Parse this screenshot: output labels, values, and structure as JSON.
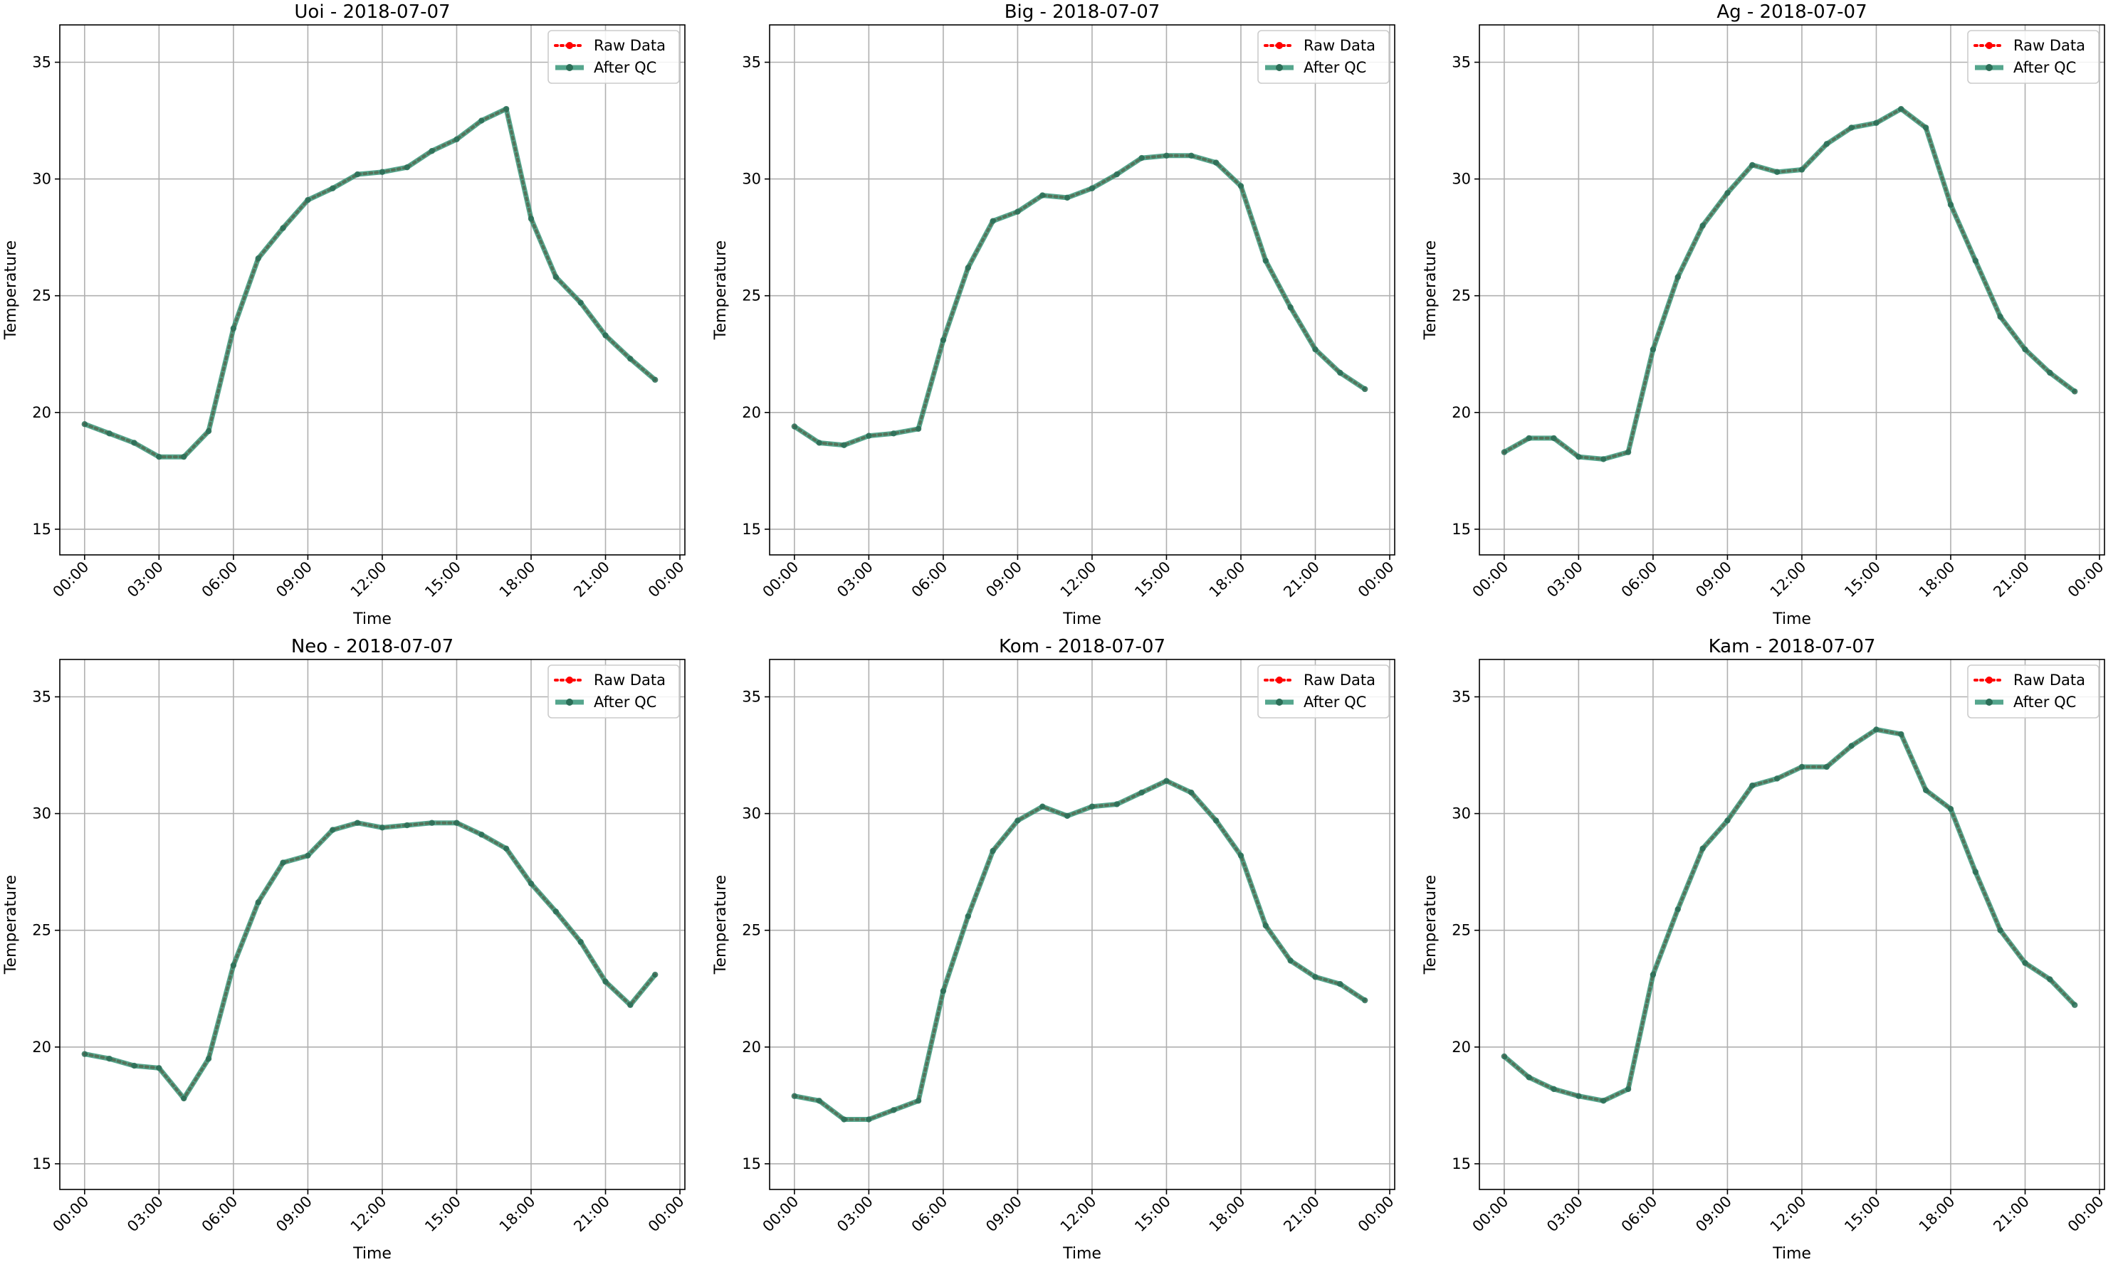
{
  "chart_data": [
    {
      "type": "line",
      "title": "Uoi - 2018-07-07",
      "xlabel": "Time",
      "ylabel": "Temperature",
      "ylim": [
        13.9,
        36.6
      ],
      "yticks": [
        15,
        20,
        25,
        30,
        35
      ],
      "xlim": [
        -1,
        24.2
      ],
      "xticks": [
        0,
        3,
        6,
        9,
        12,
        15,
        18,
        21,
        24
      ],
      "xticklabels": [
        "00:00",
        "03:00",
        "06:00",
        "09:00",
        "12:00",
        "15:00",
        "18:00",
        "21:00",
        "00:00"
      ],
      "grid": true,
      "legend": "top-right",
      "x": [
        0,
        1,
        2,
        3,
        4,
        5,
        6,
        7,
        8,
        9,
        10,
        11,
        12,
        13,
        14,
        15,
        16,
        17,
        18,
        19,
        20,
        21,
        22,
        23
      ],
      "series": [
        {
          "name": "Raw Data",
          "style": "dotted",
          "color": "#ff0000",
          "values": [
            19.5,
            19.1,
            18.7,
            18.1,
            18.1,
            19.2,
            23.6,
            26.6,
            27.9,
            29.1,
            29.6,
            30.2,
            30.3,
            30.5,
            31.2,
            31.7,
            32.5,
            33.0,
            28.3,
            25.8,
            24.7,
            23.3,
            22.3,
            21.4
          ]
        },
        {
          "name": "After QC",
          "style": "solid",
          "color": "#2a9070",
          "values": [
            19.5,
            19.1,
            18.7,
            18.1,
            18.1,
            19.2,
            23.6,
            26.6,
            27.9,
            29.1,
            29.6,
            30.2,
            30.3,
            30.5,
            31.2,
            31.7,
            32.5,
            33.0,
            28.3,
            25.8,
            24.7,
            23.3,
            22.3,
            21.4
          ]
        }
      ]
    },
    {
      "type": "line",
      "title": "Big - 2018-07-07",
      "xlabel": "Time",
      "ylabel": "Temperature",
      "ylim": [
        13.9,
        36.6
      ],
      "yticks": [
        15,
        20,
        25,
        30,
        35
      ],
      "xlim": [
        -1,
        24.2
      ],
      "xticks": [
        0,
        3,
        6,
        9,
        12,
        15,
        18,
        21,
        24
      ],
      "xticklabels": [
        "00:00",
        "03:00",
        "06:00",
        "09:00",
        "12:00",
        "15:00",
        "18:00",
        "21:00",
        "00:00"
      ],
      "grid": true,
      "legend": "top-right",
      "x": [
        0,
        1,
        2,
        3,
        4,
        5,
        6,
        7,
        8,
        9,
        10,
        11,
        12,
        13,
        14,
        15,
        16,
        17,
        18,
        19,
        20,
        21,
        22,
        23
      ],
      "series": [
        {
          "name": "Raw Data",
          "style": "dotted",
          "color": "#ff0000",
          "values": [
            19.4,
            18.7,
            18.6,
            19.0,
            19.1,
            19.3,
            23.1,
            26.2,
            28.2,
            28.6,
            29.3,
            29.2,
            29.6,
            30.2,
            30.9,
            31.0,
            31.0,
            30.7,
            29.7,
            26.5,
            24.5,
            22.7,
            21.7,
            21.0
          ]
        },
        {
          "name": "After QC",
          "style": "solid",
          "color": "#2a9070",
          "values": [
            19.4,
            18.7,
            18.6,
            19.0,
            19.1,
            19.3,
            23.1,
            26.2,
            28.2,
            28.6,
            29.3,
            29.2,
            29.6,
            30.2,
            30.9,
            31.0,
            31.0,
            30.7,
            29.7,
            26.5,
            24.5,
            22.7,
            21.7,
            21.0
          ]
        }
      ]
    },
    {
      "type": "line",
      "title": "Ag - 2018-07-07",
      "xlabel": "Time",
      "ylabel": "Temperature",
      "ylim": [
        13.9,
        36.6
      ],
      "yticks": [
        15,
        20,
        25,
        30,
        35
      ],
      "xlim": [
        -1,
        24.2
      ],
      "xticks": [
        0,
        3,
        6,
        9,
        12,
        15,
        18,
        21,
        24
      ],
      "xticklabels": [
        "00:00",
        "03:00",
        "06:00",
        "09:00",
        "12:00",
        "15:00",
        "18:00",
        "21:00",
        "00:00"
      ],
      "grid": true,
      "legend": "top-right",
      "x": [
        0,
        1,
        2,
        3,
        4,
        5,
        6,
        7,
        8,
        9,
        10,
        11,
        12,
        13,
        14,
        15,
        16,
        17,
        18,
        19,
        20,
        21,
        22,
        23
      ],
      "series": [
        {
          "name": "Raw Data",
          "style": "dotted",
          "color": "#ff0000",
          "values": [
            18.3,
            18.9,
            18.9,
            18.1,
            18.0,
            18.3,
            22.7,
            25.8,
            28.0,
            29.4,
            30.6,
            30.3,
            30.4,
            31.5,
            32.2,
            32.4,
            33.0,
            32.2,
            28.9,
            26.5,
            24.1,
            22.7,
            21.7,
            20.9
          ]
        },
        {
          "name": "After QC",
          "style": "solid",
          "color": "#2a9070",
          "values": [
            18.3,
            18.9,
            18.9,
            18.1,
            18.0,
            18.3,
            22.7,
            25.8,
            28.0,
            29.4,
            30.6,
            30.3,
            30.4,
            31.5,
            32.2,
            32.4,
            33.0,
            32.2,
            28.9,
            26.5,
            24.1,
            22.7,
            21.7,
            20.9
          ]
        }
      ]
    },
    {
      "type": "line",
      "title": "Neo - 2018-07-07",
      "xlabel": "Time",
      "ylabel": "Temperature",
      "ylim": [
        13.9,
        36.6
      ],
      "yticks": [
        15,
        20,
        25,
        30,
        35
      ],
      "xlim": [
        -1,
        24.2
      ],
      "xticks": [
        0,
        3,
        6,
        9,
        12,
        15,
        18,
        21,
        24
      ],
      "xticklabels": [
        "00:00",
        "03:00",
        "06:00",
        "09:00",
        "12:00",
        "15:00",
        "18:00",
        "21:00",
        "00:00"
      ],
      "grid": true,
      "legend": "top-right",
      "x": [
        0,
        1,
        2,
        3,
        4,
        5,
        6,
        7,
        8,
        9,
        10,
        11,
        12,
        13,
        14,
        15,
        16,
        17,
        18,
        19,
        20,
        21,
        22,
        23
      ],
      "series": [
        {
          "name": "Raw Data",
          "style": "dotted",
          "color": "#ff0000",
          "values": [
            19.7,
            19.5,
            19.2,
            19.1,
            17.8,
            19.5,
            23.5,
            26.2,
            27.9,
            28.2,
            29.3,
            29.6,
            29.4,
            29.5,
            29.6,
            29.6,
            29.1,
            28.5,
            27.0,
            25.8,
            24.5,
            22.8,
            21.8,
            23.1
          ]
        },
        {
          "name": "After QC",
          "style": "solid",
          "color": "#2a9070",
          "values": [
            19.7,
            19.5,
            19.2,
            19.1,
            17.8,
            19.5,
            23.5,
            26.2,
            27.9,
            28.2,
            29.3,
            29.6,
            29.4,
            29.5,
            29.6,
            29.6,
            29.1,
            28.5,
            27.0,
            25.8,
            24.5,
            22.8,
            21.8,
            23.1
          ]
        }
      ]
    },
    {
      "type": "line",
      "title": "Kom - 2018-07-07",
      "xlabel": "Time",
      "ylabel": "Temperature",
      "ylim": [
        13.9,
        36.6
      ],
      "yticks": [
        15,
        20,
        25,
        30,
        35
      ],
      "xlim": [
        -1,
        24.2
      ],
      "xticks": [
        0,
        3,
        6,
        9,
        12,
        15,
        18,
        21,
        24
      ],
      "xticklabels": [
        "00:00",
        "03:00",
        "06:00",
        "09:00",
        "12:00",
        "15:00",
        "18:00",
        "21:00",
        "00:00"
      ],
      "grid": true,
      "legend": "top-right",
      "x": [
        0,
        1,
        2,
        3,
        4,
        5,
        6,
        7,
        8,
        9,
        10,
        11,
        12,
        13,
        14,
        15,
        16,
        17,
        18,
        19,
        20,
        21,
        22,
        23
      ],
      "series": [
        {
          "name": "Raw Data",
          "style": "dotted",
          "color": "#ff0000",
          "values": [
            17.9,
            17.7,
            16.9,
            16.9,
            17.3,
            17.7,
            22.4,
            25.6,
            28.4,
            29.7,
            30.3,
            29.9,
            30.3,
            30.4,
            30.9,
            31.4,
            30.9,
            29.7,
            28.2,
            25.2,
            23.7,
            23.0,
            22.7,
            22.0
          ]
        },
        {
          "name": "After QC",
          "style": "solid",
          "color": "#2a9070",
          "values": [
            17.9,
            17.7,
            16.9,
            16.9,
            17.3,
            17.7,
            22.4,
            25.6,
            28.4,
            29.7,
            30.3,
            29.9,
            30.3,
            30.4,
            30.9,
            31.4,
            30.9,
            29.7,
            28.2,
            25.2,
            23.7,
            23.0,
            22.7,
            22.0
          ]
        }
      ]
    },
    {
      "type": "line",
      "title": "Kam - 2018-07-07",
      "xlabel": "Time",
      "ylabel": "Temperature",
      "ylim": [
        13.9,
        36.6
      ],
      "yticks": [
        15,
        20,
        25,
        30,
        35
      ],
      "xlim": [
        -1,
        24.2
      ],
      "xticks": [
        0,
        3,
        6,
        9,
        12,
        15,
        18,
        21,
        24
      ],
      "xticklabels": [
        "00:00",
        "03:00",
        "06:00",
        "09:00",
        "12:00",
        "15:00",
        "18:00",
        "21:00",
        "00:00"
      ],
      "grid": true,
      "legend": "top-right",
      "x": [
        0,
        1,
        2,
        3,
        4,
        5,
        6,
        7,
        8,
        9,
        10,
        11,
        12,
        13,
        14,
        15,
        16,
        17,
        18,
        19,
        20,
        21,
        22,
        23
      ],
      "series": [
        {
          "name": "Raw Data",
          "style": "dotted",
          "color": "#ff0000",
          "values": [
            19.6,
            18.7,
            18.2,
            17.9,
            17.7,
            18.2,
            23.1,
            25.9,
            28.5,
            29.7,
            31.2,
            31.5,
            32.0,
            32.0,
            32.9,
            33.6,
            33.4,
            31.0,
            30.2,
            27.5,
            25.0,
            23.6,
            22.9,
            21.8
          ]
        },
        {
          "name": "After QC",
          "style": "solid",
          "color": "#2a9070",
          "values": [
            19.6,
            18.7,
            18.2,
            17.9,
            17.7,
            18.2,
            23.1,
            25.9,
            28.5,
            29.7,
            31.2,
            31.5,
            32.0,
            32.0,
            32.9,
            33.6,
            33.4,
            31.0,
            30.2,
            27.5,
            25.0,
            23.6,
            22.9,
            21.8
          ]
        }
      ]
    }
  ]
}
